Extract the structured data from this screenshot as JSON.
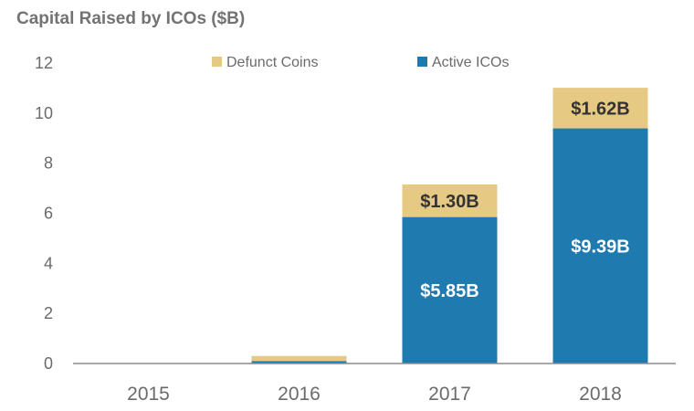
{
  "chart_data": {
    "type": "bar",
    "stacked": true,
    "title": "Capital Raised by ICOs ($B)",
    "xlabel": "",
    "ylabel": "",
    "categories": [
      "2015",
      "2016",
      "2017",
      "2018"
    ],
    "ylim": [
      0,
      12
    ],
    "yticks": [
      0,
      2,
      4,
      6,
      8,
      10,
      12
    ],
    "legend_position": "top",
    "grid": false,
    "series": [
      {
        "name": "Active ICOs",
        "color": "#1f7ab0",
        "label_color": "#ffffff",
        "values": [
          0,
          0.1,
          5.85,
          9.39
        ],
        "labels": [
          "",
          "",
          "$5.85B",
          "$9.39B"
        ]
      },
      {
        "name": "Defunct Coins",
        "color": "#e6c983",
        "label_color": "#333333",
        "values": [
          0,
          0.2,
          1.3,
          1.62
        ],
        "labels": [
          "",
          "",
          "$1.30B",
          "$1.62B"
        ]
      }
    ],
    "legend_order": [
      "Defunct Coins",
      "Active ICOs"
    ]
  }
}
